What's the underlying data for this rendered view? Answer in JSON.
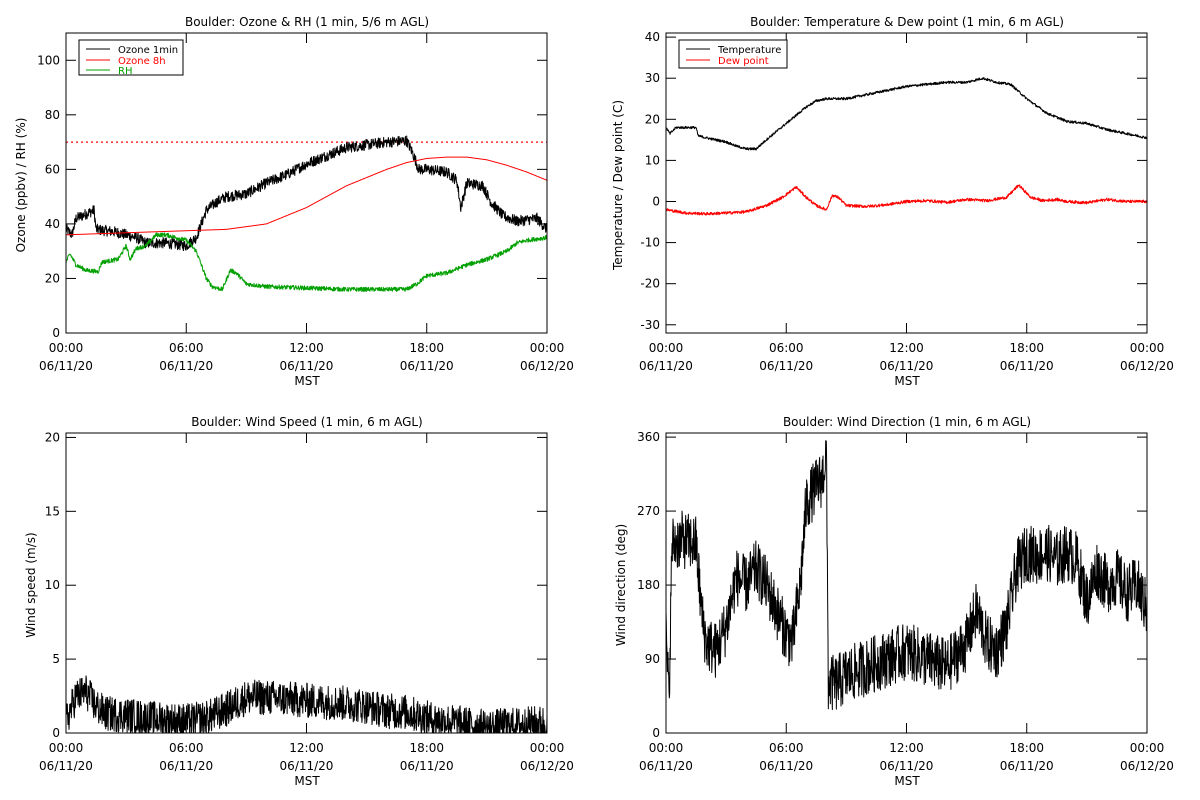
{
  "chart_data": [
    {
      "type": "line",
      "title": "Boulder: Ozone & RH (1 min, 5/6 m AGL)",
      "xlabel": "MST",
      "ylabel": "Ozone (ppbv) / RH (%)",
      "ylim": [
        0,
        110
      ],
      "yticks": [
        0,
        20,
        40,
        60,
        80,
        100
      ],
      "xlim": [
        0,
        24
      ],
      "xticks": [
        0,
        6,
        12,
        18,
        24
      ],
      "xticklabels": [
        [
          "00:00",
          "06/11/20"
        ],
        [
          "06:00",
          "06/11/20"
        ],
        [
          "12:00",
          "06/11/20"
        ],
        [
          "18:00",
          "06/11/20"
        ],
        [
          "00:00",
          "06/12/20"
        ]
      ],
      "legend_position": "top-left",
      "reference_line": {
        "y": 70,
        "style": "dotted",
        "color": "#ff0000"
      },
      "series": [
        {
          "name": "Ozone 1min",
          "color": "#000000",
          "noise": 2.0,
          "points": [
            [
              0,
              38
            ],
            [
              0.3,
              36
            ],
            [
              0.5,
              42
            ],
            [
              1.4,
              45
            ],
            [
              1.5,
              38
            ],
            [
              2.5,
              37
            ],
            [
              3.0,
              36
            ],
            [
              3.5,
              35
            ],
            [
              4.0,
              33
            ],
            [
              5.0,
              33
            ],
            [
              6.0,
              32
            ],
            [
              6.5,
              35
            ],
            [
              7.0,
              45
            ],
            [
              7.5,
              48
            ],
            [
              8.0,
              50
            ],
            [
              9.0,
              51
            ],
            [
              10.0,
              55
            ],
            [
              11.0,
              58
            ],
            [
              12.0,
              62
            ],
            [
              13.0,
              65
            ],
            [
              14.0,
              68
            ],
            [
              15.0,
              69
            ],
            [
              16.0,
              70
            ],
            [
              17.0,
              70.5
            ],
            [
              17.3,
              66
            ],
            [
              17.6,
              60
            ],
            [
              18.0,
              60
            ],
            [
              19.0,
              59
            ],
            [
              19.5,
              56
            ],
            [
              19.7,
              46
            ],
            [
              20.0,
              55
            ],
            [
              20.8,
              54
            ],
            [
              21.2,
              48
            ],
            [
              21.8,
              43
            ],
            [
              22.5,
              41
            ],
            [
              23.5,
              42
            ],
            [
              24.0,
              38
            ]
          ]
        },
        {
          "name": "Ozone 8h",
          "color": "#ff0000",
          "noise": 0,
          "points": [
            [
              0,
              36
            ],
            [
              2,
              36.5
            ],
            [
              4,
              37
            ],
            [
              6,
              37.5
            ],
            [
              8,
              38
            ],
            [
              10,
              40
            ],
            [
              11,
              43
            ],
            [
              12,
              46
            ],
            [
              13,
              50
            ],
            [
              14,
              54
            ],
            [
              15,
              57
            ],
            [
              16,
              60
            ],
            [
              17,
              62.5
            ],
            [
              18,
              64
            ],
            [
              19,
              64.5
            ],
            [
              20,
              64.5
            ],
            [
              21,
              63.5
            ],
            [
              22,
              61.5
            ],
            [
              23,
              59
            ],
            [
              24,
              56
            ]
          ]
        },
        {
          "name": "RH",
          "color": "#00a000",
          "noise": 0.8,
          "points": [
            [
              0,
              26
            ],
            [
              0.2,
              29
            ],
            [
              0.5,
              25
            ],
            [
              1.0,
              23
            ],
            [
              1.6,
              22.5
            ],
            [
              1.8,
              26
            ],
            [
              2.6,
              27
            ],
            [
              3.0,
              32
            ],
            [
              3.2,
              27
            ],
            [
              3.5,
              31
            ],
            [
              4.0,
              32
            ],
            [
              4.5,
              36
            ],
            [
              5.0,
              36
            ],
            [
              5.5,
              35
            ],
            [
              6.0,
              34
            ],
            [
              6.5,
              30
            ],
            [
              7.0,
              20
            ],
            [
              7.3,
              17
            ],
            [
              7.8,
              16
            ],
            [
              8.2,
              23
            ],
            [
              8.5,
              22
            ],
            [
              9.0,
              18
            ],
            [
              10,
              17
            ],
            [
              12,
              16.5
            ],
            [
              14,
              16
            ],
            [
              16,
              16
            ],
            [
              17,
              16
            ],
            [
              17.5,
              18
            ],
            [
              18,
              21
            ],
            [
              19,
              22
            ],
            [
              20,
              25
            ],
            [
              21,
              27
            ],
            [
              22,
              30
            ],
            [
              22.5,
              33
            ],
            [
              23,
              34
            ],
            [
              24,
              35
            ]
          ]
        }
      ]
    },
    {
      "type": "line",
      "title": "Boulder: Temperature & Dew point (1 min, 6 m AGL)",
      "xlabel": "MST",
      "ylabel": "Temperature / Dew point (C)",
      "ylim": [
        -32,
        41
      ],
      "yticks": [
        -30,
        -20,
        -10,
        0,
        10,
        20,
        30,
        40
      ],
      "xlim": [
        0,
        24
      ],
      "xticks": [
        0,
        6,
        12,
        18,
        24
      ],
      "xticklabels": [
        [
          "00:00",
          "06/11/20"
        ],
        [
          "06:00",
          "06/11/20"
        ],
        [
          "12:00",
          "06/11/20"
        ],
        [
          "18:00",
          "06/11/20"
        ],
        [
          "00:00",
          "06/12/20"
        ]
      ],
      "legend_position": "top-left",
      "series": [
        {
          "name": "Temperature",
          "color": "#000000",
          "noise": 0.3,
          "points": [
            [
              0,
              18
            ],
            [
              0.2,
              16.5
            ],
            [
              0.5,
              18
            ],
            [
              1.5,
              18
            ],
            [
              1.6,
              16
            ],
            [
              2.0,
              15.5
            ],
            [
              2.5,
              15
            ],
            [
              3.0,
              14.5
            ],
            [
              3.5,
              13.5
            ],
            [
              4.0,
              12.8
            ],
            [
              4.5,
              12.8
            ],
            [
              5.0,
              15
            ],
            [
              5.5,
              17
            ],
            [
              6.0,
              19
            ],
            [
              6.5,
              21
            ],
            [
              7.0,
              23
            ],
            [
              7.5,
              24.5
            ],
            [
              8.0,
              25
            ],
            [
              9.0,
              25
            ],
            [
              10,
              26
            ],
            [
              11,
              27
            ],
            [
              12,
              28
            ],
            [
              13,
              28.5
            ],
            [
              14,
              29
            ],
            [
              15,
              29
            ],
            [
              15.8,
              30
            ],
            [
              16.5,
              29
            ],
            [
              17.2,
              28.5
            ],
            [
              18.0,
              25
            ],
            [
              19.0,
              21.5
            ],
            [
              20.0,
              19.5
            ],
            [
              21.0,
              19
            ],
            [
              22.0,
              17.5
            ],
            [
              23.0,
              16.5
            ],
            [
              24.0,
              15.5
            ]
          ]
        },
        {
          "name": "Dew point",
          "color": "#ff0000",
          "noise": 0.35,
          "points": [
            [
              0,
              -2
            ],
            [
              1,
              -2.8
            ],
            [
              2,
              -3
            ],
            [
              3,
              -2.8
            ],
            [
              4,
              -2.5
            ],
            [
              5,
              -1
            ],
            [
              5.8,
              1
            ],
            [
              6.5,
              3.5
            ],
            [
              7.0,
              1
            ],
            [
              7.5,
              -1
            ],
            [
              8.0,
              -2
            ],
            [
              8.3,
              1.5
            ],
            [
              8.6,
              1
            ],
            [
              9.0,
              -1
            ],
            [
              10,
              -1.2
            ],
            [
              11,
              -0.8
            ],
            [
              12,
              0
            ],
            [
              13,
              0.2
            ],
            [
              14,
              -0.2
            ],
            [
              15,
              0.5
            ],
            [
              16,
              0.2
            ],
            [
              17,
              1
            ],
            [
              17.6,
              4
            ],
            [
              18.2,
              1
            ],
            [
              18.8,
              0.2
            ],
            [
              19.5,
              0.5
            ],
            [
              20,
              0
            ],
            [
              21,
              -0.3
            ],
            [
              22,
              0.5
            ],
            [
              23,
              0
            ],
            [
              24,
              0
            ]
          ]
        }
      ]
    },
    {
      "type": "line",
      "title": "Boulder: Wind Speed (1 min, 6 m AGL)",
      "xlabel": "MST",
      "ylabel": "Wind speed (m/s)",
      "ylim": [
        0,
        20.3
      ],
      "yticks": [
        0,
        5,
        10,
        15,
        20
      ],
      "xlim": [
        0,
        24
      ],
      "xticks": [
        0,
        6,
        12,
        18,
        24
      ],
      "xticklabels": [
        [
          "00:00",
          "06/11/20"
        ],
        [
          "06:00",
          "06/11/20"
        ],
        [
          "12:00",
          "06/11/20"
        ],
        [
          "18:00",
          "06/11/20"
        ],
        [
          "00:00",
          "06/12/20"
        ]
      ],
      "series": [
        {
          "name": "",
          "color": "#000000",
          "noise": 1.2,
          "points": [
            [
              0,
              0.8
            ],
            [
              0.5,
              2.5
            ],
            [
              1.0,
              2.8
            ],
            [
              1.5,
              1.8
            ],
            [
              2.0,
              1.3
            ],
            [
              3.0,
              1.2
            ],
            [
              4.0,
              1.0
            ],
            [
              5.0,
              0.9
            ],
            [
              6.0,
              0.8
            ],
            [
              7.0,
              1.0
            ],
            [
              8.0,
              1.6
            ],
            [
              9.0,
              2.4
            ],
            [
              10.0,
              2.4
            ],
            [
              11.0,
              2.3
            ],
            [
              12.0,
              2.2
            ],
            [
              13.0,
              2.1
            ],
            [
              14.0,
              2.0
            ],
            [
              15.0,
              1.8
            ],
            [
              16.0,
              1.5
            ],
            [
              17.0,
              1.4
            ],
            [
              18.0,
              1.0
            ],
            [
              19.0,
              0.8
            ],
            [
              20.0,
              0.6
            ],
            [
              21.0,
              0.4
            ],
            [
              22.0,
              0.5
            ],
            [
              23.0,
              0.6
            ],
            [
              24.0,
              0.7
            ]
          ]
        }
      ]
    },
    {
      "type": "line",
      "title": "Boulder: Wind Direction (1 min, 6 m AGL)",
      "xlabel": "MST",
      "ylabel": "Wind direction (deg)",
      "ylim": [
        0,
        365
      ],
      "yticks": [
        0,
        90,
        180,
        270,
        360
      ],
      "xlim": [
        0,
        24
      ],
      "xticks": [
        0,
        6,
        12,
        18,
        24
      ],
      "xticklabels": [
        [
          "00:00",
          "06/11/20"
        ],
        [
          "06:00",
          "06/11/20"
        ],
        [
          "12:00",
          "06/11/20"
        ],
        [
          "18:00",
          "06/11/20"
        ],
        [
          "00:00",
          "06/12/20"
        ]
      ],
      "series": [
        {
          "name": "",
          "color": "#000000",
          "noise": 35,
          "points": [
            [
              0,
              120
            ],
            [
              0.15,
              40
            ],
            [
              0.3,
              230
            ],
            [
              0.8,
              235
            ],
            [
              1.5,
              230
            ],
            [
              1.8,
              140
            ],
            [
              2.0,
              110
            ],
            [
              2.5,
              100
            ],
            [
              3.0,
              130
            ],
            [
              3.5,
              190
            ],
            [
              4.0,
              180
            ],
            [
              4.5,
              200
            ],
            [
              5.0,
              180
            ],
            [
              5.5,
              150
            ],
            [
              6.0,
              120
            ],
            [
              6.3,
              110
            ],
            [
              6.7,
              180
            ],
            [
              7.0,
              280
            ],
            [
              7.5,
              300
            ],
            [
              7.8,
              310
            ],
            [
              8.0,
              340
            ],
            [
              8.1,
              60
            ],
            [
              8.5,
              60
            ],
            [
              9.0,
              70
            ],
            [
              10.0,
              80
            ],
            [
              11.0,
              90
            ],
            [
              12.0,
              100
            ],
            [
              13.0,
              90
            ],
            [
              14.0,
              80
            ],
            [
              15.0,
              110
            ],
            [
              15.5,
              150
            ],
            [
              16.0,
              110
            ],
            [
              16.5,
              100
            ],
            [
              17.0,
              130
            ],
            [
              17.5,
              200
            ],
            [
              18.0,
              220
            ],
            [
              18.5,
              215
            ],
            [
              19.0,
              220
            ],
            [
              19.5,
              210
            ],
            [
              20.0,
              220
            ],
            [
              20.5,
              210
            ],
            [
              21.0,
              160
            ],
            [
              21.5,
              200
            ],
            [
              22.0,
              180
            ],
            [
              22.5,
              190
            ],
            [
              23.0,
              170
            ],
            [
              23.5,
              180
            ],
            [
              24.0,
              150
            ]
          ]
        }
      ]
    }
  ]
}
